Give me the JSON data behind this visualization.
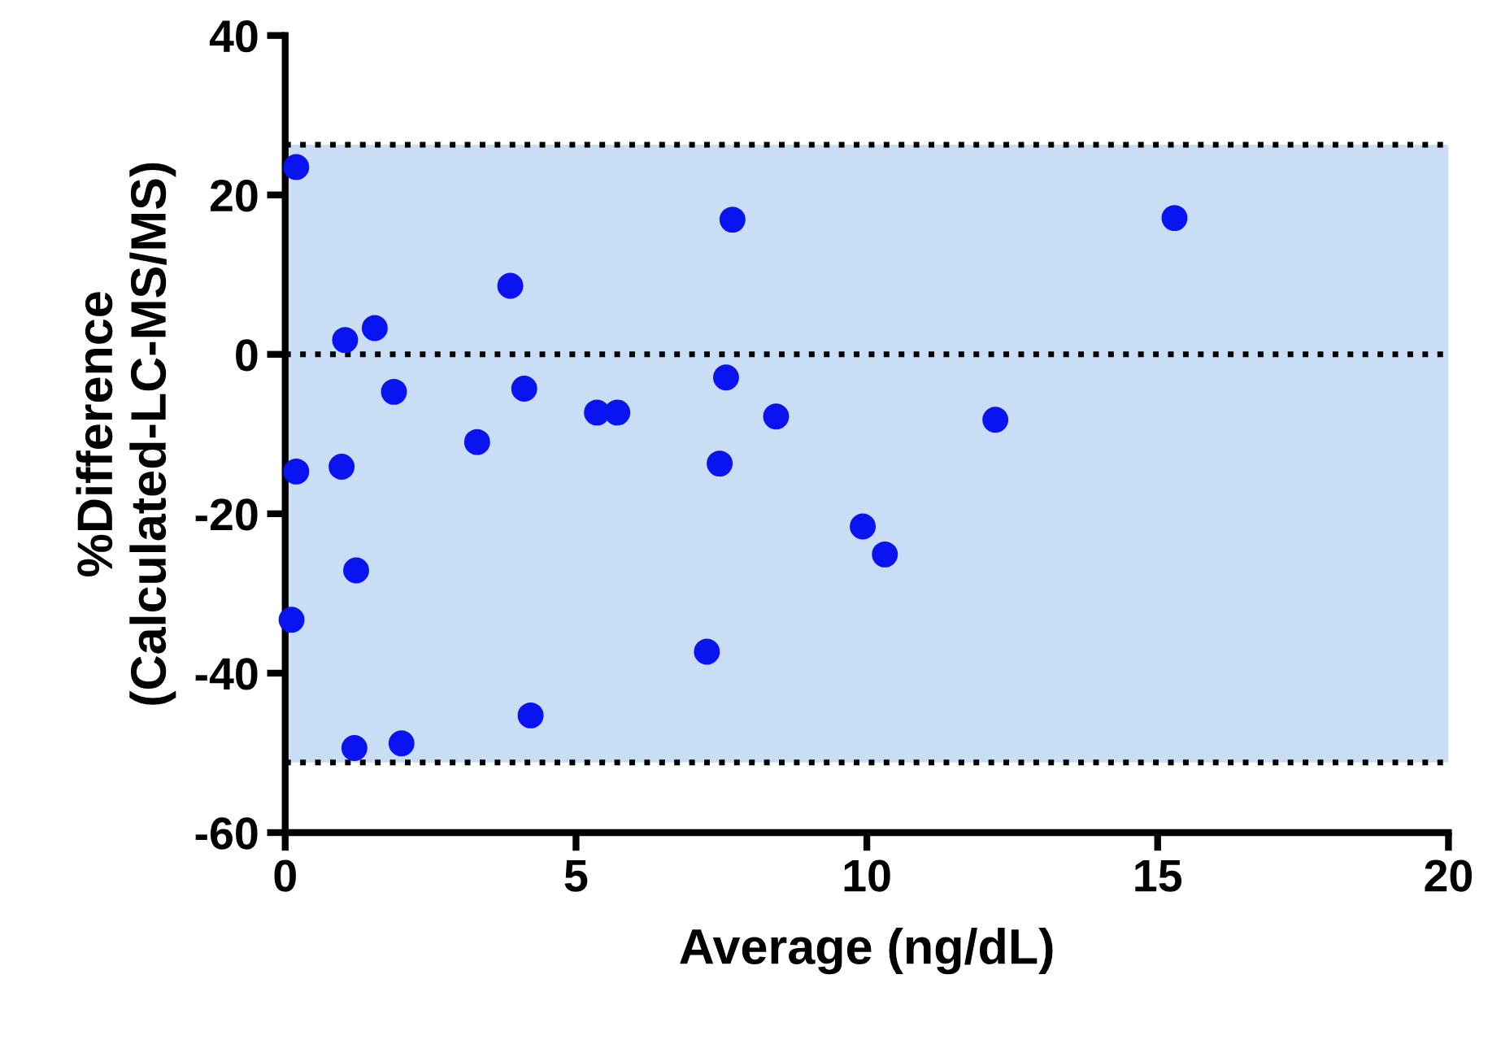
{
  "chart_data": {
    "type": "scatter",
    "xlabel": "Average (ng/dL)",
    "ylabel": "%Difference\n(Calculated-LC-MS/MS)",
    "x": [
      0.19,
      0.19,
      0.11,
      1.03,
      0.97,
      1.22,
      1.19,
      1.54,
      1.87,
      2.0,
      3.3,
      3.87,
      4.11,
      4.22,
      5.36,
      5.71,
      7.25,
      7.47,
      7.58,
      7.69,
      8.44,
      9.93,
      10.31,
      12.21,
      15.29
    ],
    "series": [
      {
        "color": "#0a14f0",
        "values": [
          23.5,
          -14.7,
          -33.3,
          1.8,
          -14.1,
          -27.1,
          -49.4,
          3.3,
          -4.7,
          -48.8,
          -11.0,
          8.6,
          -4.3,
          -45.3,
          -7.3,
          -7.3,
          -37.3,
          -13.7,
          -2.9,
          16.9,
          -7.8,
          -21.6,
          -25.1,
          -8.2,
          17.1
        ]
      }
    ],
    "xlim": [
      0,
      20
    ],
    "xticks": [
      0,
      5,
      10,
      15,
      20
    ],
    "ylim": [
      -60,
      40
    ],
    "yticks": [
      -60,
      -40,
      -20,
      0,
      20,
      40
    ],
    "bands": [
      {
        "axis": "y",
        "from": -51.2,
        "to": 26.3,
        "color": "#c9ddf5"
      }
    ],
    "ref_lines": [
      {
        "axis": "y",
        "value": 26.3,
        "line_style": "dotted",
        "color": "#000000"
      },
      {
        "axis": "y",
        "value": 0,
        "line_style": "dotted",
        "color": "#000000"
      },
      {
        "axis": "y",
        "value": -51.2,
        "line_style": "dotted",
        "color": "#000000"
      }
    ],
    "marker": "circle",
    "grid": false,
    "legend": false
  }
}
